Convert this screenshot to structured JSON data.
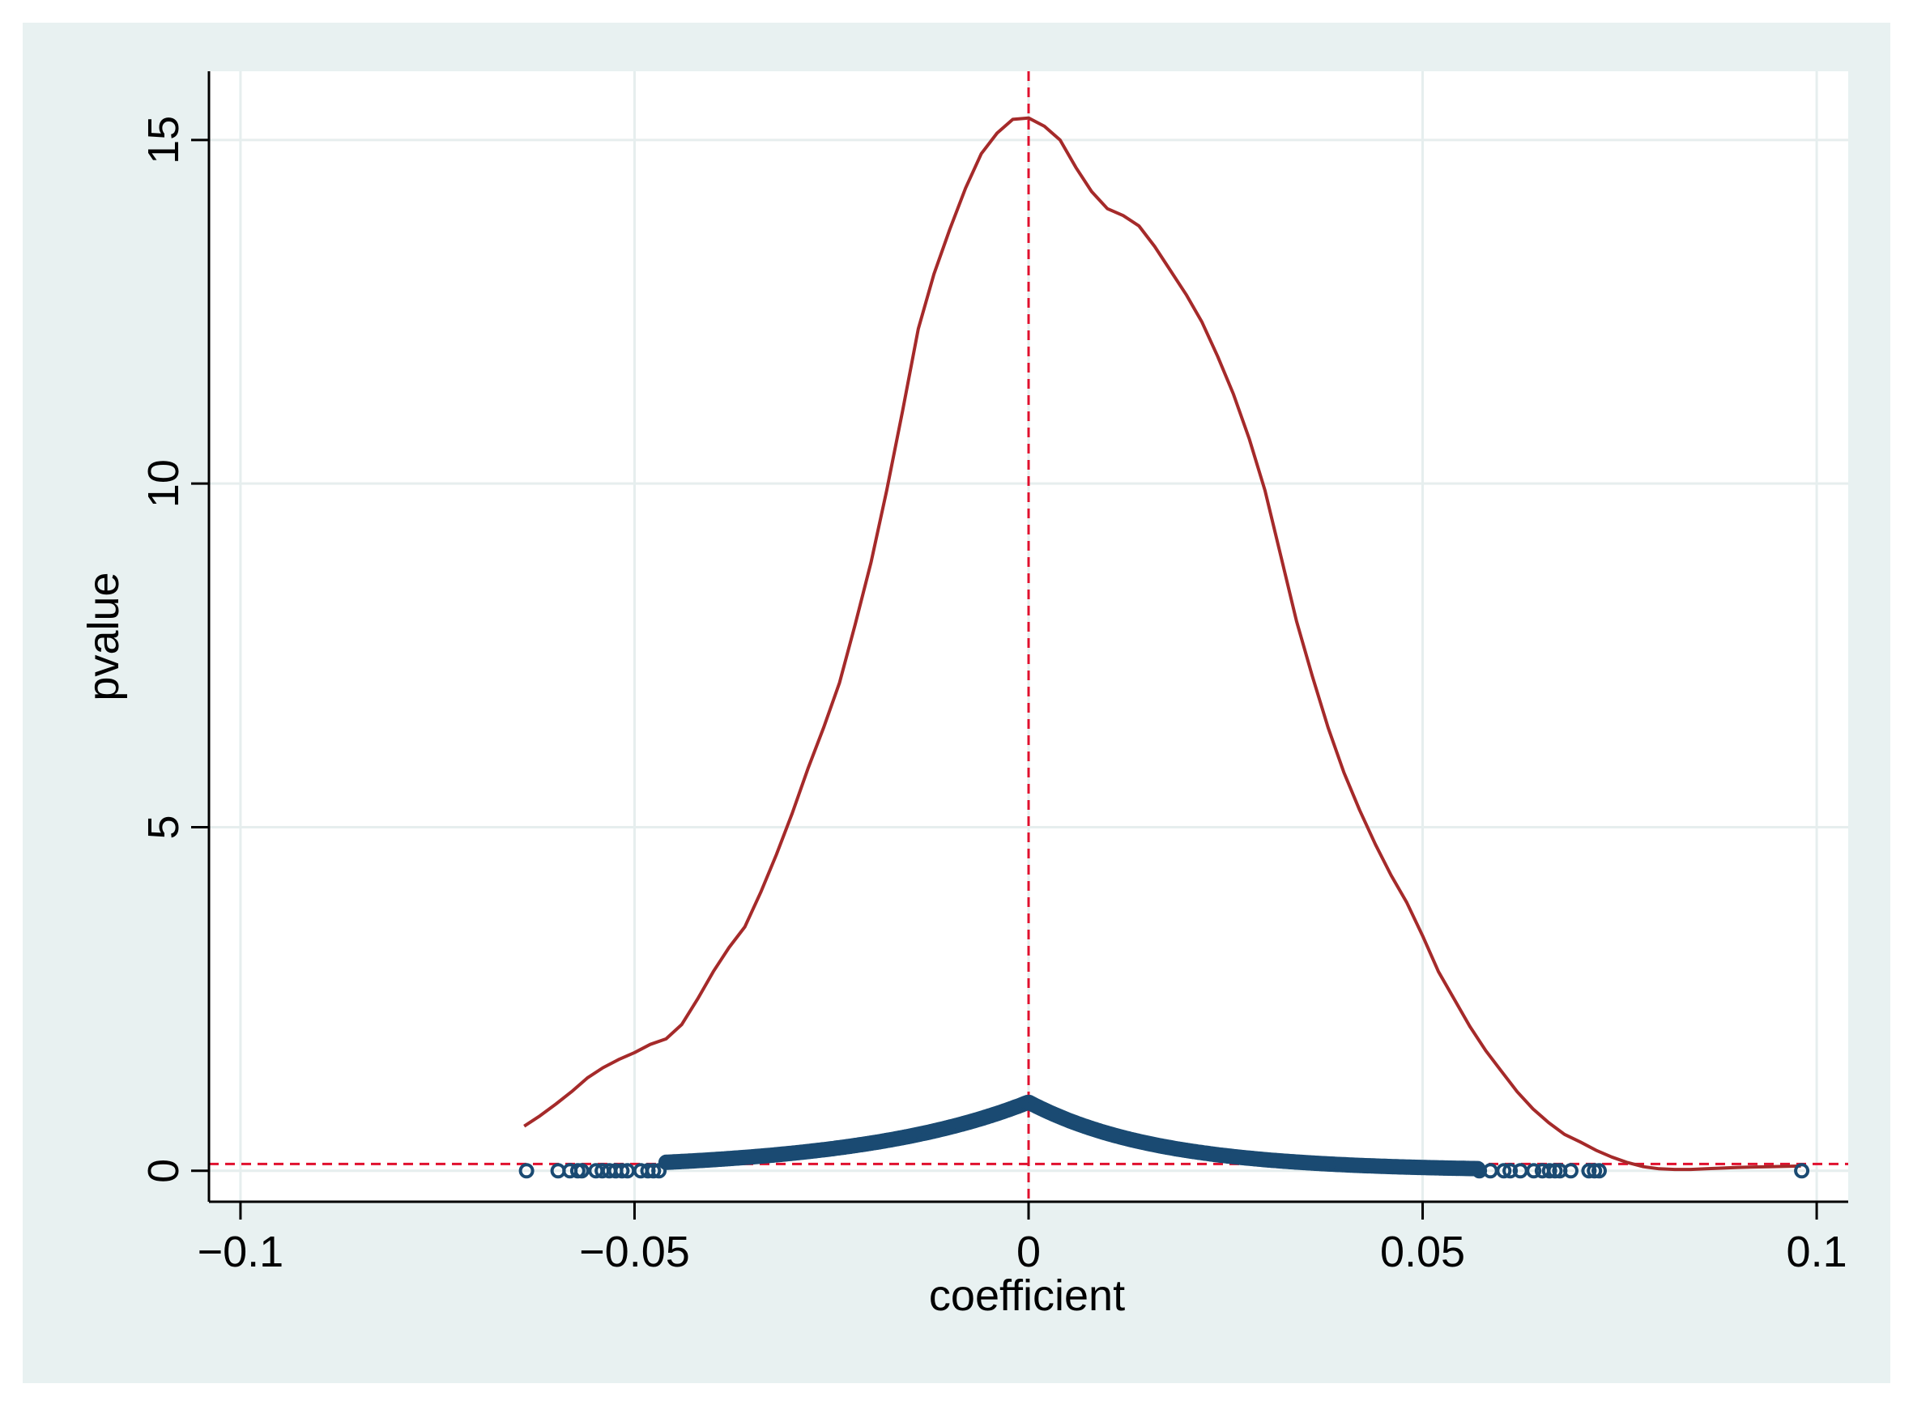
{
  "chart_data": {
    "type": "scatter",
    "xlabel": "coefficient",
    "ylabel": "pvalue",
    "xlim": [
      -0.104,
      0.104
    ],
    "ylim": [
      -0.45,
      16.0
    ],
    "x_ticks": [
      -0.1,
      -0.05,
      0,
      0.05,
      0.1
    ],
    "x_tick_labels": [
      "−0.1",
      "−0.05",
      "0",
      "0.05",
      "0.1"
    ],
    "y_ticks": [
      0,
      5,
      10,
      15
    ],
    "y_tick_labels": [
      "0",
      "5",
      "10",
      "15"
    ],
    "grid": true,
    "reference_lines": [
      {
        "orientation": "vertical",
        "value": 0,
        "style": "dashed",
        "color": "#e0102e"
      },
      {
        "orientation": "horizontal",
        "value": 0.1,
        "style": "dashed",
        "color": "#e0102e"
      }
    ],
    "series": [
      {
        "kind": "scatter",
        "marker": "hollow-circle",
        "color": "#1a4a72",
        "dense_range": [
          -0.046,
          0.057
        ],
        "peak_at": 0,
        "peak_value": 1.0,
        "decay_scale_left": 0.022,
        "decay_scale_right": 0.0165,
        "points": [
          [
            -0.0637,
            0.0
          ],
          [
            -0.0597,
            0.0
          ],
          [
            -0.0582,
            0.0
          ],
          [
            -0.0572,
            0.0
          ],
          [
            -0.0567,
            0.0
          ],
          [
            -0.0549,
            0.0
          ],
          [
            -0.0541,
            0.0
          ],
          [
            -0.0532,
            0.0
          ],
          [
            -0.0524,
            0.0
          ],
          [
            -0.0516,
            0.0
          ],
          [
            -0.0509,
            0.0
          ],
          [
            -0.0492,
            0.0
          ],
          [
            -0.0483,
            0.0
          ],
          [
            -0.0476,
            0.0
          ],
          [
            -0.0469,
            0.0
          ],
          [
            0.0572,
            0.0
          ],
          [
            0.0586,
            0.0
          ],
          [
            0.0603,
            0.0
          ],
          [
            0.0611,
            0.0
          ],
          [
            0.0624,
            0.0
          ],
          [
            0.0641,
            0.0
          ],
          [
            0.0652,
            0.0
          ],
          [
            0.0661,
            0.0
          ],
          [
            0.0668,
            0.0
          ],
          [
            0.0674,
            0.0
          ],
          [
            0.0688,
            0.0
          ],
          [
            0.0711,
            0.0
          ],
          [
            0.0718,
            0.0
          ],
          [
            0.0724,
            0.0
          ],
          [
            0.0981,
            0.0
          ]
        ]
      },
      {
        "kind": "line",
        "color": "#a52a2a",
        "points": [
          [
            -0.064,
            0.65
          ],
          [
            -0.062,
            0.8
          ],
          [
            -0.06,
            0.97
          ],
          [
            -0.058,
            1.15
          ],
          [
            -0.056,
            1.35
          ],
          [
            -0.054,
            1.5
          ],
          [
            -0.052,
            1.62
          ],
          [
            -0.05,
            1.72
          ],
          [
            -0.048,
            1.84
          ],
          [
            -0.046,
            1.92
          ],
          [
            -0.044,
            2.13
          ],
          [
            -0.042,
            2.5
          ],
          [
            -0.04,
            2.9
          ],
          [
            -0.038,
            3.25
          ],
          [
            -0.036,
            3.55
          ],
          [
            -0.034,
            4.05
          ],
          [
            -0.032,
            4.6
          ],
          [
            -0.03,
            5.2
          ],
          [
            -0.028,
            5.85
          ],
          [
            -0.026,
            6.45
          ],
          [
            -0.024,
            7.1
          ],
          [
            -0.022,
            7.95
          ],
          [
            -0.02,
            8.85
          ],
          [
            -0.018,
            9.9
          ],
          [
            -0.016,
            11.05
          ],
          [
            -0.014,
            12.25
          ],
          [
            -0.012,
            13.05
          ],
          [
            -0.01,
            13.7
          ],
          [
            -0.008,
            14.3
          ],
          [
            -0.006,
            14.8
          ],
          [
            -0.004,
            15.1
          ],
          [
            -0.002,
            15.3
          ],
          [
            0.0,
            15.32
          ],
          [
            0.002,
            15.2
          ],
          [
            0.004,
            15.0
          ],
          [
            0.006,
            14.6
          ],
          [
            0.008,
            14.25
          ],
          [
            0.01,
            14.0
          ],
          [
            0.012,
            13.9
          ],
          [
            0.014,
            13.75
          ],
          [
            0.016,
            13.45
          ],
          [
            0.018,
            13.1
          ],
          [
            0.02,
            12.75
          ],
          [
            0.022,
            12.35
          ],
          [
            0.024,
            11.85
          ],
          [
            0.026,
            11.3
          ],
          [
            0.028,
            10.65
          ],
          [
            0.03,
            9.9
          ],
          [
            0.032,
            8.95
          ],
          [
            0.034,
            8.0
          ],
          [
            0.036,
            7.2
          ],
          [
            0.038,
            6.45
          ],
          [
            0.04,
            5.8
          ],
          [
            0.042,
            5.25
          ],
          [
            0.044,
            4.75
          ],
          [
            0.046,
            4.3
          ],
          [
            0.048,
            3.9
          ],
          [
            0.05,
            3.42
          ],
          [
            0.052,
            2.9
          ],
          [
            0.054,
            2.5
          ],
          [
            0.056,
            2.1
          ],
          [
            0.058,
            1.75
          ],
          [
            0.06,
            1.45
          ],
          [
            0.062,
            1.15
          ],
          [
            0.064,
            0.9
          ],
          [
            0.066,
            0.7
          ],
          [
            0.068,
            0.53
          ],
          [
            0.07,
            0.42
          ],
          [
            0.072,
            0.3
          ],
          [
            0.074,
            0.2
          ],
          [
            0.076,
            0.12
          ],
          [
            0.078,
            0.06
          ],
          [
            0.08,
            0.03
          ],
          [
            0.082,
            0.02
          ],
          [
            0.084,
            0.02
          ],
          [
            0.086,
            0.03
          ],
          [
            0.09,
            0.05
          ],
          [
            0.094,
            0.06
          ],
          [
            0.098,
            0.07
          ]
        ]
      }
    ]
  }
}
